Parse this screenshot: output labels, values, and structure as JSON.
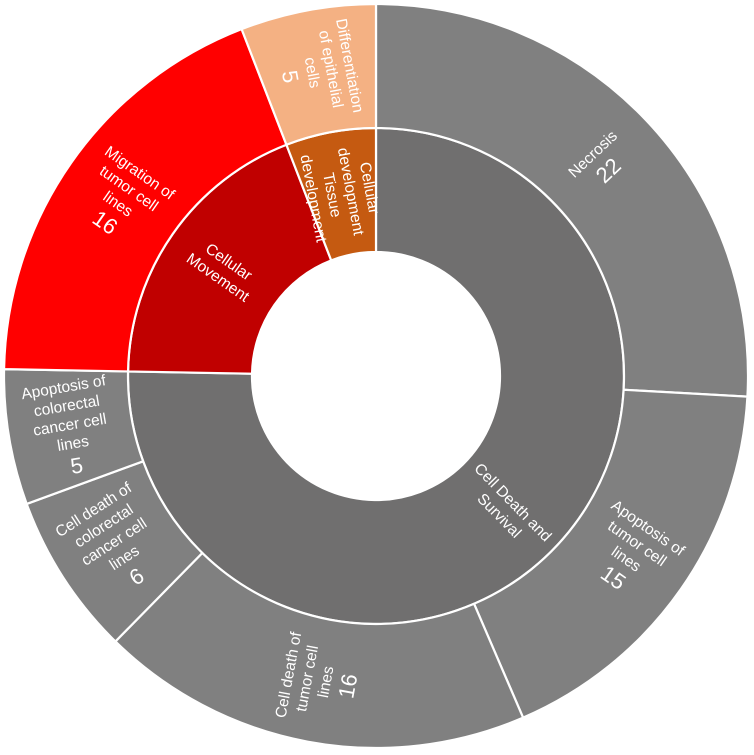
{
  "chart_data": {
    "type": "sunburst",
    "title": "",
    "inner": [
      {
        "name": "Cell Death and\nSurvival",
        "color": "#706f6f",
        "children_index": [
          0,
          1,
          2,
          3,
          4
        ]
      },
      {
        "name": "Cellular\nMovement",
        "color": "#c00000",
        "children_index": [
          5
        ]
      },
      {
        "name": "Cellular\ndevelopment\nTissue\ndevelopment",
        "color": "#c55a11",
        "children_index": [
          6
        ]
      }
    ],
    "outer": [
      {
        "name": "Necrosis",
        "value": 22,
        "parent": "Cell Death and Survival",
        "color": "#808080"
      },
      {
        "name": "Apoptosis of\ntumor cell\nlines",
        "value": 15,
        "parent": "Cell Death and Survival",
        "color": "#808080"
      },
      {
        "name": "Cell death of\ntumor cell\nlines",
        "value": 16,
        "parent": "Cell Death and Survival",
        "color": "#808080"
      },
      {
        "name": "Cell death of\ncolorectal\ncancer cell\nlines",
        "value": 6,
        "parent": "Cell Death and Survival",
        "color": "#808080"
      },
      {
        "name": "Apoptosis of\ncolorectal\ncancer cell\nlines",
        "value": 5,
        "parent": "Cell Death and Survival",
        "color": "#808080"
      },
      {
        "name": "Migration of\ntumor cell\nlines",
        "value": 16,
        "parent": "Cellular Movement",
        "color": "#ff0000"
      },
      {
        "name": "Differentiation\nof epithelial\ncells",
        "value": 5,
        "parent": "Cellular development Tissue development",
        "color": "#f4b183"
      }
    ]
  }
}
